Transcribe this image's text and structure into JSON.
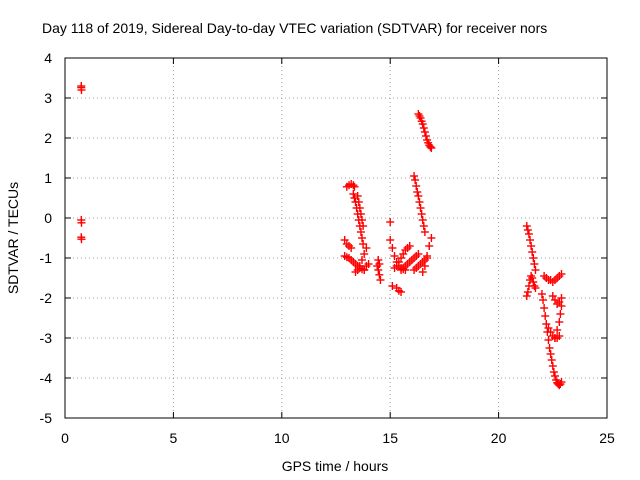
{
  "chart_data": {
    "type": "scatter",
    "title": "Day 118 of 2019, Sidereal Day-to-day VTEC variation (SDTVAR) for receiver nors",
    "xlabel": "GPS time / hours",
    "ylabel": "SDTVAR / TECUs",
    "xlim": [
      0,
      25
    ],
    "ylim": [
      -5,
      4
    ],
    "x_ticks": [
      "0",
      "5",
      "10",
      "15",
      "20",
      "25"
    ],
    "y_ticks": [
      "-5",
      "-4",
      "-3",
      "-2",
      "-1",
      "0",
      "1",
      "2",
      "3",
      "4"
    ],
    "grid": true,
    "marker": "+",
    "color": "#ff0000",
    "legend": "none",
    "segments": [
      {
        "x": [
          0.75,
          0.75,
          0.76
        ],
        "y": [
          3.3,
          3.26,
          3.2
        ]
      },
      {
        "x": [
          0.75,
          0.76
        ],
        "y": [
          -0.05,
          -0.12
        ]
      },
      {
        "x": [
          0.75,
          0.76
        ],
        "y": [
          -0.48,
          -0.53
        ]
      },
      {
        "x": [
          13.0,
          13.1,
          13.2,
          13.3,
          13.35
        ],
        "y": [
          0.78,
          0.82,
          0.85,
          0.82,
          0.78
        ]
      },
      {
        "x": [
          13.3,
          13.35,
          13.4,
          13.45,
          13.5,
          13.55,
          13.6,
          13.65,
          13.7,
          13.75
        ],
        "y": [
          0.6,
          0.5,
          0.4,
          0.25,
          0.1,
          -0.05,
          -0.2,
          -0.35,
          -0.5,
          -0.65
        ]
      },
      {
        "x": [
          13.5,
          13.55,
          13.6,
          13.65,
          13.7,
          13.75
        ],
        "y": [
          0.55,
          0.4,
          0.25,
          0.1,
          -0.05,
          -0.2
        ]
      },
      {
        "x": [
          12.9,
          13.0,
          13.1,
          13.2
        ],
        "y": [
          -0.55,
          -0.65,
          -0.7,
          -0.75
        ]
      },
      {
        "x": [
          12.9,
          13.0,
          13.1,
          13.2,
          13.3,
          13.4,
          13.5,
          13.6,
          13.7,
          13.8
        ],
        "y": [
          -0.95,
          -0.98,
          -1.0,
          -1.05,
          -1.1,
          -1.15,
          -1.2,
          -1.25,
          -1.28,
          -1.3
        ]
      },
      {
        "x": [
          13.4,
          13.5,
          13.6,
          13.7,
          13.8,
          13.9
        ],
        "y": [
          -1.35,
          -1.3,
          -1.2,
          -1.05,
          -0.9,
          -0.75
        ]
      },
      {
        "x": [
          13.8,
          13.9,
          14.0
        ],
        "y": [
          -1.3,
          -1.2,
          -1.15
        ]
      },
      {
        "x": [
          14.4,
          14.45,
          14.5,
          14.55
        ],
        "y": [
          -1.2,
          -1.3,
          -1.42,
          -1.55
        ]
      },
      {
        "x": [
          14.45,
          14.5
        ],
        "y": [
          -1.05,
          -1.15
        ]
      },
      {
        "x": [
          15.0
        ],
        "y": [
          -0.1
        ]
      },
      {
        "x": [
          15.0,
          15.1,
          15.2,
          15.3,
          15.4,
          15.5,
          15.6,
          15.7
        ],
        "y": [
          -0.55,
          -0.75,
          -0.95,
          -1.1,
          -1.2,
          -1.25,
          -1.28,
          -1.3
        ]
      },
      {
        "x": [
          15.2,
          15.3,
          15.4,
          15.5,
          15.6,
          15.7,
          15.8,
          15.9
        ],
        "y": [
          -1.25,
          -1.2,
          -1.1,
          -1.0,
          -0.9,
          -0.8,
          -0.75,
          -0.7
        ]
      },
      {
        "x": [
          15.3,
          15.4,
          15.5
        ],
        "y": [
          -1.75,
          -1.82,
          -1.85
        ]
      },
      {
        "x": [
          15.1
        ],
        "y": [
          -1.7
        ]
      },
      {
        "x": [
          15.5,
          15.6,
          15.7,
          15.8,
          15.9,
          16.0,
          16.1,
          16.2,
          16.3
        ],
        "y": [
          -1.3,
          -1.25,
          -1.2,
          -1.15,
          -1.1,
          -1.05,
          -1.0,
          -0.95,
          -0.9
        ]
      },
      {
        "x": [
          16.1,
          16.15,
          16.2,
          16.25,
          16.3,
          16.35,
          16.4,
          16.45,
          16.5,
          16.55,
          16.6
        ],
        "y": [
          1.05,
          0.95,
          0.8,
          0.65,
          0.55,
          0.4,
          0.25,
          0.1,
          -0.05,
          -0.2,
          -0.35
        ]
      },
      {
        "x": [
          16.3,
          16.35,
          16.4,
          16.45,
          16.5,
          16.55,
          16.6,
          16.65,
          16.7,
          16.75,
          16.8,
          16.85,
          16.9
        ],
        "y": [
          2.6,
          2.55,
          2.5,
          2.42,
          2.35,
          2.25,
          2.15,
          2.05,
          1.95,
          1.88,
          1.82,
          1.78,
          1.75
        ]
      },
      {
        "x": [
          16.1,
          16.2,
          16.3,
          16.4,
          16.5,
          16.6,
          16.7
        ],
        "y": [
          -1.3,
          -1.25,
          -1.2,
          -1.15,
          -1.1,
          -1.05,
          -1.0
        ]
      },
      {
        "x": [
          16.5,
          16.6,
          16.7,
          16.8,
          16.9
        ],
        "y": [
          -1.35,
          -1.2,
          -0.95,
          -0.7,
          -0.5
        ]
      },
      {
        "x": [
          21.3,
          21.35,
          21.4,
          21.45,
          21.5,
          21.55,
          21.6,
          21.65,
          21.7
        ],
        "y": [
          -0.2,
          -0.3,
          -0.4,
          -0.55,
          -0.7,
          -0.85,
          -1.0,
          -1.15,
          -1.3
        ]
      },
      {
        "x": [
          21.3,
          21.35,
          21.4,
          21.45,
          21.5,
          21.55,
          21.6,
          21.65,
          21.7
        ],
        "y": [
          -1.95,
          -1.85,
          -1.7,
          -1.55,
          -1.45,
          -1.5,
          -1.6,
          -1.7,
          -1.75
        ]
      },
      {
        "x": [
          22.0,
          22.05,
          22.1,
          22.15,
          22.2,
          22.25,
          22.3,
          22.35,
          22.4,
          22.45,
          22.5,
          22.55,
          22.6,
          22.65,
          22.7,
          22.75,
          22.8,
          22.85,
          22.9
        ],
        "y": [
          -1.9,
          -2.05,
          -2.25,
          -2.45,
          -2.65,
          -2.85,
          -3.05,
          -3.25,
          -3.4,
          -3.55,
          -3.7,
          -3.85,
          -3.95,
          -4.05,
          -4.12,
          -4.15,
          -4.18,
          -4.15,
          -4.1
        ]
      },
      {
        "x": [
          22.1,
          22.2,
          22.3,
          22.4,
          22.5,
          22.6,
          22.7,
          22.8,
          22.9
        ],
        "y": [
          -1.45,
          -1.5,
          -1.55,
          -1.55,
          -1.6,
          -1.55,
          -1.5,
          -1.45,
          -1.4
        ]
      },
      {
        "x": [
          22.3,
          22.4,
          22.5,
          22.6,
          22.7,
          22.8
        ],
        "y": [
          -2.75,
          -2.85,
          -2.95,
          -3.0,
          -3.0,
          -2.95
        ]
      },
      {
        "x": [
          22.5,
          22.6,
          22.7,
          22.8,
          22.9
        ],
        "y": [
          -1.95,
          -2.05,
          -2.15,
          -2.1,
          -2.0
        ]
      },
      {
        "x": [
          22.6,
          22.7,
          22.8,
          22.85,
          22.9
        ],
        "y": [
          -3.0,
          -2.8,
          -2.6,
          -2.4,
          -2.2
        ]
      }
    ]
  }
}
